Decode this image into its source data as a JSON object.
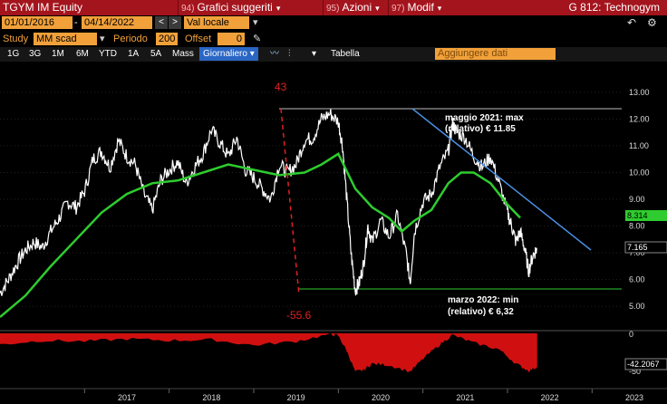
{
  "header": {
    "ticker": "TGYM IM Equity",
    "menus": [
      {
        "num": "94)",
        "label": "Grafici suggeriti"
      },
      {
        "num": "95)",
        "label": "Azioni"
      },
      {
        "num": "97)",
        "label": "Modif"
      }
    ],
    "right_title": "G 812: Technogym"
  },
  "dates": {
    "start": "01/01/2016",
    "end": "04/14/2022",
    "currency": "Val locale"
  },
  "study": {
    "label": "Study",
    "value": "MM scad",
    "period_label": "Periodo",
    "period_value": "200",
    "offset_label": "Offset",
    "offset_value": "0"
  },
  "toolbar": {
    "ranges": [
      "1G",
      "3G",
      "1M",
      "6M",
      "YTD",
      "1A",
      "5A",
      "Mass"
    ],
    "frequency": "Giornaliero",
    "tabella": "Tabella",
    "add_data": "Aggiungere dati"
  },
  "chart_data": {
    "type": "line",
    "x_ticks": [
      "2017",
      "2018",
      "2019",
      "2020",
      "2021",
      "2022",
      "2023"
    ],
    "y_ticks": [
      "13.00",
      "12.00",
      "11.00",
      "10.00",
      "9.00",
      "8.00",
      "7.00",
      "6.00",
      "5.00"
    ],
    "ylim": [
      4.6,
      13.4
    ],
    "price_series": [
      [
        2016.0,
        5.5
      ],
      [
        2016.1,
        6.0
      ],
      [
        2016.2,
        6.6
      ],
      [
        2016.3,
        7.1
      ],
      [
        2016.4,
        7.4
      ],
      [
        2016.5,
        7.2
      ],
      [
        2016.6,
        7.8
      ],
      [
        2016.7,
        8.3
      ],
      [
        2016.8,
        8.9
      ],
      [
        2016.9,
        8.7
      ],
      [
        2017.0,
        9.3
      ],
      [
        2017.1,
        10.5
      ],
      [
        2017.2,
        10.8
      ],
      [
        2017.3,
        10.2
      ],
      [
        2017.4,
        11.2
      ],
      [
        2017.5,
        10.6
      ],
      [
        2017.6,
        10.3
      ],
      [
        2017.7,
        9.2
      ],
      [
        2017.8,
        8.6
      ],
      [
        2017.9,
        9.7
      ],
      [
        2018.0,
        10.1
      ],
      [
        2018.1,
        10.4
      ],
      [
        2018.2,
        9.6
      ],
      [
        2018.3,
        10.2
      ],
      [
        2018.4,
        10.7
      ],
      [
        2018.5,
        11.6
      ],
      [
        2018.6,
        11.1
      ],
      [
        2018.7,
        10.6
      ],
      [
        2018.8,
        11.3
      ],
      [
        2018.9,
        10.1
      ],
      [
        2019.0,
        9.8
      ],
      [
        2019.1,
        9.4
      ],
      [
        2019.2,
        9.0
      ],
      [
        2019.3,
        10.3
      ],
      [
        2019.4,
        10.0
      ],
      [
        2019.5,
        10.3
      ],
      [
        2019.6,
        11.2
      ],
      [
        2019.7,
        11.3
      ],
      [
        2019.8,
        12.0
      ],
      [
        2019.9,
        12.2
      ],
      [
        2020.0,
        11.9
      ],
      [
        2020.05,
        11.0
      ],
      [
        2020.1,
        9.0
      ],
      [
        2020.15,
        7.0
      ],
      [
        2020.2,
        5.6
      ],
      [
        2020.25,
        5.9
      ],
      [
        2020.3,
        6.6
      ],
      [
        2020.35,
        8.0
      ],
      [
        2020.4,
        7.4
      ],
      [
        2020.5,
        8.2
      ],
      [
        2020.6,
        7.6
      ],
      [
        2020.7,
        8.4
      ],
      [
        2020.8,
        7.0
      ],
      [
        2020.85,
        5.9
      ],
      [
        2020.9,
        7.8
      ],
      [
        2021.0,
        8.9
      ],
      [
        2021.1,
        9.2
      ],
      [
        2021.2,
        10.2
      ],
      [
        2021.3,
        10.8
      ],
      [
        2021.35,
        11.85
      ],
      [
        2021.4,
        11.5
      ],
      [
        2021.5,
        11.3
      ],
      [
        2021.6,
        10.6
      ],
      [
        2021.7,
        10.2
      ],
      [
        2021.8,
        10.6
      ],
      [
        2021.9,
        9.6
      ],
      [
        2022.0,
        8.5
      ],
      [
        2022.05,
        8.0
      ],
      [
        2022.1,
        7.4
      ],
      [
        2022.15,
        7.8
      ],
      [
        2022.2,
        7.2
      ],
      [
        2022.25,
        6.32
      ],
      [
        2022.3,
        6.9
      ],
      [
        2022.35,
        7.165
      ]
    ],
    "moving_average": [
      [
        2016.0,
        4.6
      ],
      [
        2016.3,
        5.4
      ],
      [
        2016.6,
        6.5
      ],
      [
        2016.9,
        7.5
      ],
      [
        2017.2,
        8.5
      ],
      [
        2017.5,
        9.2
      ],
      [
        2017.8,
        9.6
      ],
      [
        2018.1,
        9.7
      ],
      [
        2018.4,
        10.0
      ],
      [
        2018.7,
        10.3
      ],
      [
        2019.0,
        10.1
      ],
      [
        2019.3,
        9.9
      ],
      [
        2019.6,
        10.0
      ],
      [
        2019.8,
        10.3
      ],
      [
        2020.0,
        10.7
      ],
      [
        2020.2,
        9.4
      ],
      [
        2020.4,
        8.7
      ],
      [
        2020.6,
        8.3
      ],
      [
        2020.75,
        7.8
      ],
      [
        2020.9,
        8.2
      ],
      [
        2021.1,
        8.6
      ],
      [
        2021.3,
        9.6
      ],
      [
        2021.45,
        10.0
      ],
      [
        2021.6,
        10.0
      ],
      [
        2021.8,
        9.6
      ],
      [
        2022.0,
        8.8
      ],
      [
        2022.15,
        8.31
      ]
    ],
    "labels": {
      "peak_label": "43",
      "trough_label": "-55.6",
      "last_ma": "8.314",
      "last_price": "7.165",
      "max_annotation_line1": "maggio 2021: max",
      "max_annotation_line2": "(relativo) € 11.85",
      "min_annotation_line1": "marzo 2022: min",
      "min_annotation_line2": "(relativo) € 6,32",
      "drawdown_last": "-42.2067",
      "dd_y_top": "0",
      "dd_y_bottom": "-50"
    },
    "drawdown_series": [
      [
        2016.0,
        -14
      ],
      [
        2016.5,
        -9
      ],
      [
        2017.0,
        -10
      ],
      [
        2017.5,
        -7
      ],
      [
        2018.0,
        -9
      ],
      [
        2018.5,
        -8
      ],
      [
        2019.0,
        -15
      ],
      [
        2019.5,
        -10
      ],
      [
        2019.9,
        -1
      ],
      [
        2020.0,
        -3
      ],
      [
        2020.1,
        -22
      ],
      [
        2020.2,
        -48
      ],
      [
        2020.3,
        -46
      ],
      [
        2020.4,
        -38
      ],
      [
        2020.6,
        -40
      ],
      [
        2020.85,
        -48
      ],
      [
        2021.0,
        -32
      ],
      [
        2021.2,
        -14
      ],
      [
        2021.35,
        -2
      ],
      [
        2021.6,
        -12
      ],
      [
        2021.9,
        -20
      ],
      [
        2022.1,
        -38
      ],
      [
        2022.25,
        -47
      ],
      [
        2022.35,
        -42.2
      ]
    ],
    "colors": {
      "price": "#ffffff",
      "ma": "#2ecc2e",
      "trend": "#4a90e2",
      "drawdown": "#d01010",
      "ma_badge": "#2ecc2e"
    }
  }
}
